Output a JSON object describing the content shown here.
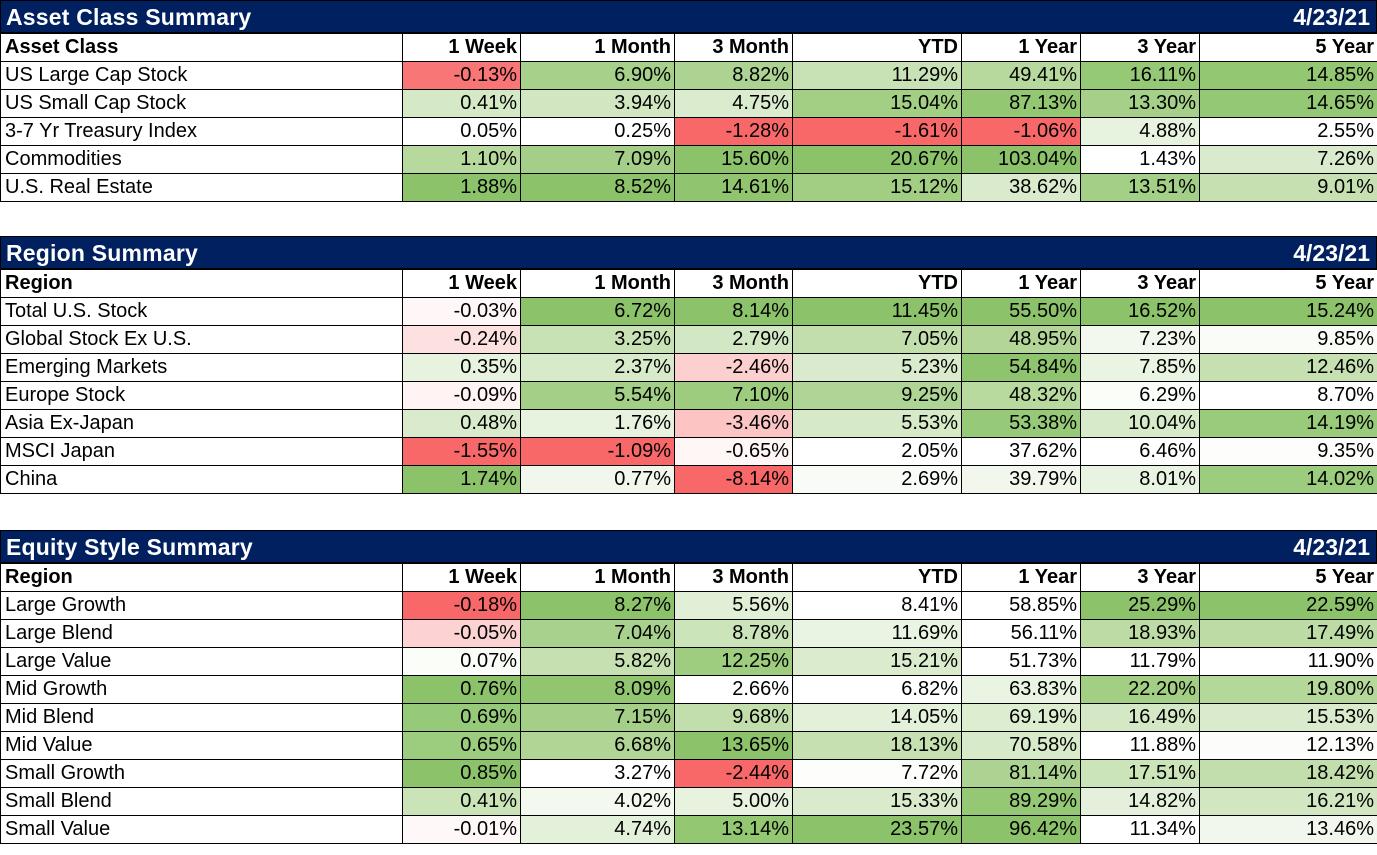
{
  "sections": [
    {
      "id": "asset-class",
      "title": "Asset Class Summary",
      "date": "4/23/21",
      "columns": [
        "Asset Class",
        "1 Week",
        "1 Month",
        "3 Month",
        "YTD",
        "1 Year",
        "3 Year",
        "5 Year"
      ],
      "rows": [
        {
          "name": "US Large Cap Stock",
          "values": [
            "-0.13%",
            "6.90%",
            "8.82%",
            "11.29%",
            "49.41%",
            "16.11%",
            "14.85%"
          ],
          "colors": [
            "#f87676",
            "#a7d18a",
            "#acd391",
            "#c9e2b5",
            "#b7d99e",
            "#96c976",
            "#93c772"
          ]
        },
        {
          "name": "US Small Cap Stock",
          "values": [
            "0.41%",
            "3.94%",
            "4.75%",
            "15.04%",
            "87.13%",
            "13.30%",
            "14.65%"
          ],
          "colors": [
            "#d5e9c6",
            "#d1e6c1",
            "#dbecce",
            "#a3cf85",
            "#93c772",
            "#a6d089",
            "#95c875"
          ]
        },
        {
          "name": "3-7 Yr Treasury Index",
          "values": [
            "0.05%",
            "0.25%",
            "-1.28%",
            "-1.61%",
            "-1.06%",
            "4.88%",
            "2.55%"
          ],
          "colors": [
            "#ffffff",
            "#ffffff",
            "#f86868",
            "#f86868",
            "#f86868",
            "#e7f2df",
            "#ffffff"
          ]
        },
        {
          "name": "Commodities",
          "values": [
            "1.10%",
            "7.09%",
            "15.60%",
            "20.67%",
            "103.04%",
            "1.43%",
            "7.26%"
          ],
          "colors": [
            "#b7d99e",
            "#a5cf88",
            "#8cc26a",
            "#8cc26a",
            "#8cc26a",
            "#ffffff",
            "#d9ebcc"
          ]
        },
        {
          "name": "U.S. Real Estate",
          "values": [
            "1.88%",
            "8.52%",
            "14.61%",
            "15.12%",
            "38.62%",
            "13.51%",
            "9.01%"
          ],
          "colors": [
            "#8cc26a",
            "#8cc26a",
            "#90c46f",
            "#a2ce84",
            "#d9ebcc",
            "#a4cf87",
            "#c6e0b1"
          ]
        }
      ]
    },
    {
      "id": "region",
      "title": "Region Summary",
      "date": "4/23/21",
      "columns": [
        "Region",
        "1 Week",
        "1 Month",
        "3 Month",
        "YTD",
        "1 Year",
        "3 Year",
        "5 Year"
      ],
      "rows": [
        {
          "name": "Total U.S. Stock",
          "values": [
            "-0.03%",
            "6.72%",
            "8.14%",
            "11.45%",
            "55.50%",
            "16.52%",
            "15.24%"
          ],
          "colors": [
            "#fff7f7",
            "#8cc26a",
            "#8cc26a",
            "#8cc26a",
            "#8cc26a",
            "#8cc26a",
            "#8cc26a"
          ]
        },
        {
          "name": "Global Stock Ex U.S.",
          "values": [
            "-0.24%",
            "3.25%",
            "2.79%",
            "7.05%",
            "48.95%",
            "7.23%",
            "9.85%"
          ],
          "colors": [
            "#fde1e1",
            "#c9e2b5",
            "#d2e7c3",
            "#c2deac",
            "#b3d698",
            "#f2f8ed",
            "#f9fcf7"
          ]
        },
        {
          "name": "Emerging Markets",
          "values": [
            "0.35%",
            "2.37%",
            "-2.46%",
            "5.23%",
            "54.84%",
            "7.85%",
            "12.46%"
          ],
          "colors": [
            "#e7f2df",
            "#d7eaca",
            "#fdd0d0",
            "#d9ebcc",
            "#8fc46e",
            "#eaf4e3",
            "#c6e0b1"
          ]
        },
        {
          "name": "Europe Stock",
          "values": [
            "-0.09%",
            "5.54%",
            "7.10%",
            "9.25%",
            "48.32%",
            "6.29%",
            "8.70%"
          ],
          "colors": [
            "#fff3f3",
            "#a4cf87",
            "#9dcc7e",
            "#aed496",
            "#b9da9f",
            "#fbfdf9",
            "#ffffff"
          ]
        },
        {
          "name": "Asia Ex-Japan",
          "values": [
            "0.48%",
            "1.76%",
            "-3.46%",
            "5.53%",
            "53.38%",
            "10.04%",
            "14.19%"
          ],
          "colors": [
            "#d9ebcc",
            "#e7f2df",
            "#fdc4c4",
            "#d6eac8",
            "#97ca78",
            "#d7eaca",
            "#99cb7a"
          ]
        },
        {
          "name": "MSCI Japan",
          "values": [
            "-1.55%",
            "-1.09%",
            "-0.65%",
            "2.05%",
            "37.62%",
            "6.46%",
            "9.35%"
          ],
          "colors": [
            "#f86868",
            "#f86868",
            "#fff6f6",
            "#ffffff",
            "#ffffff",
            "#ffffff",
            "#fdfefc"
          ]
        },
        {
          "name": "China",
          "values": [
            "1.74%",
            "0.77%",
            "-8.14%",
            "2.69%",
            "39.79%",
            "8.01%",
            "14.02%"
          ],
          "colors": [
            "#8cc26a",
            "#f1f7ec",
            "#f86868",
            "#f9fcf6",
            "#f1f7ec",
            "#e9f3e2",
            "#9ccc7d"
          ]
        }
      ]
    },
    {
      "id": "equity-style",
      "title": "Equity Style Summary",
      "date": "4/23/21",
      "columns": [
        "Region",
        "1 Week",
        "1 Month",
        "3 Month",
        "YTD",
        "1 Year",
        "3 Year",
        "5 Year"
      ],
      "rows": [
        {
          "name": "Large Growth",
          "values": [
            "-0.18%",
            "8.27%",
            "5.56%",
            "8.41%",
            "58.85%",
            "25.29%",
            "22.59%"
          ],
          "colors": [
            "#f86868",
            "#8cc26a",
            "#e1efd7",
            "#ffffff",
            "#ffffff",
            "#8cc26a",
            "#8cc26a"
          ]
        },
        {
          "name": "Large Blend",
          "values": [
            "-0.05%",
            "7.04%",
            "8.78%",
            "11.69%",
            "56.11%",
            "18.93%",
            "17.49%"
          ],
          "colors": [
            "#fcd2d2",
            "#a9d18e",
            "#cce4b9",
            "#eaf4e3",
            "#ffffff",
            "#bcdba5",
            "#bcdba5"
          ]
        },
        {
          "name": "Large Value",
          "values": [
            "0.07%",
            "5.82%",
            "12.25%",
            "15.21%",
            "51.73%",
            "11.79%",
            "11.90%"
          ],
          "colors": [
            "#fbfdf9",
            "#c6e0b1",
            "#9ecd80",
            "#dbecce",
            "#ffffff",
            "#ffffff",
            "#ffffff"
          ]
        },
        {
          "name": "Mid Growth",
          "values": [
            "0.76%",
            "8.09%",
            "2.66%",
            "6.82%",
            "63.83%",
            "22.20%",
            "19.80%"
          ],
          "colors": [
            "#8cc26a",
            "#91c570",
            "#ffffff",
            "#ffffff",
            "#eaf4e3",
            "#a3cf85",
            "#b4d79a"
          ]
        },
        {
          "name": "Mid Blend",
          "values": [
            "0.69%",
            "7.15%",
            "9.68%",
            "14.05%",
            "69.19%",
            "16.49%",
            "15.53%"
          ],
          "colors": [
            "#97ca78",
            "#a5cf88",
            "#c2deac",
            "#e3f0da",
            "#dcedd0",
            "#d4e8c5",
            "#d9ebcc"
          ]
        },
        {
          "name": "Mid Value",
          "values": [
            "0.65%",
            "6.68%",
            "13.65%",
            "18.13%",
            "70.58%",
            "11.88%",
            "12.13%"
          ],
          "colors": [
            "#9ccc7d",
            "#b0d595",
            "#8cc26a",
            "#c6e0b1",
            "#d7eaca",
            "#ffffff",
            "#fcfdfb"
          ]
        },
        {
          "name": "Small Growth",
          "values": [
            "0.85%",
            "3.27%",
            "-2.44%",
            "7.72%",
            "81.14%",
            "17.51%",
            "18.42%"
          ],
          "colors": [
            "#8cc26a",
            "#ffffff",
            "#f86868",
            "#fdfefc",
            "#acd391",
            "#ccE4b9",
            "#c2deac"
          ]
        },
        {
          "name": "Small Blend",
          "values": [
            "0.41%",
            "4.02%",
            "5.00%",
            "15.33%",
            "89.29%",
            "14.82%",
            "16.21%"
          ],
          "colors": [
            "#cae3b7",
            "#f4f9f0",
            "#e7f2df",
            "#d9ebcc",
            "#95c875",
            "#e4f0dc",
            "#d1e6c1"
          ]
        },
        {
          "name": "Small Value",
          "values": [
            "-0.01%",
            "4.74%",
            "13.14%",
            "23.57%",
            "96.42%",
            "11.34%",
            "13.46%"
          ],
          "colors": [
            "#fff8f8",
            "#e3f0da",
            "#93c772",
            "#8cc26a",
            "#8cc26a",
            "#ffffff",
            "#f1f7ec"
          ]
        }
      ]
    }
  ]
}
